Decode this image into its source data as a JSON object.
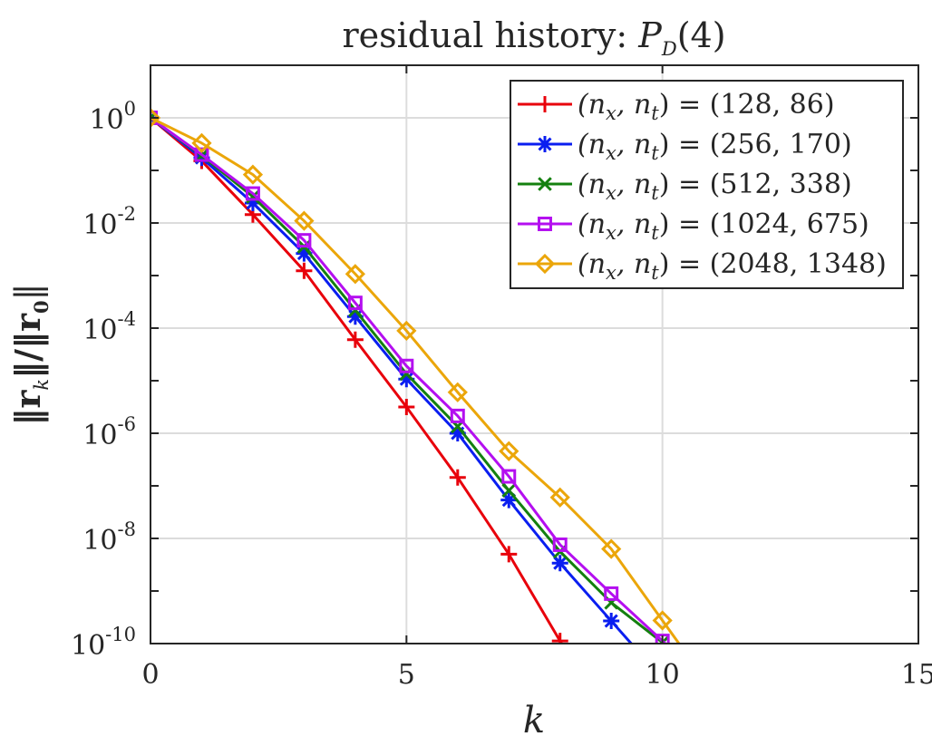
{
  "chart_data": {
    "type": "line",
    "title": "residual history: P̂_D(4)",
    "title_prefix": "residual history: ",
    "title_symbol": "P",
    "title_hat": "ˆ",
    "title_sub": "D",
    "title_arg": "(4)",
    "xlabel": "k",
    "ylabel": "||r_k|| / ||r_0||",
    "ylabel_parts": {
      "left": "‖r",
      "sub": "k",
      "mid": "‖/‖r",
      "sub2": "0",
      "right": "‖"
    },
    "xlim": [
      0,
      15
    ],
    "ylim_exp": [
      -10,
      1
    ],
    "yscale": "log",
    "grid": true,
    "legend_position": "top-right",
    "x_ticks": [
      0,
      5,
      10,
      15
    ],
    "y_tick_exponents": [
      0,
      -2,
      -4,
      -6,
      -8,
      -10
    ],
    "y_tick_base": "10",
    "series": [
      {
        "name": "(n_x, n_t) = (128, 86)",
        "label_pre": "(n",
        "label_sub1": "x",
        "label_mid": ", n",
        "label_sub2": "t",
        "label_post": ") = (128, 86)",
        "color": "#e8000b",
        "marker": "plus",
        "x": [
          0,
          1,
          2,
          3,
          4,
          5,
          6,
          7,
          8
        ],
        "log10_y": [
          0,
          -0.82,
          -1.84,
          -2.91,
          -4.22,
          -5.5,
          -6.84,
          -8.3,
          -9.95
        ]
      },
      {
        "name": "(n_x, n_t) = (256, 170)",
        "label_pre": "(n",
        "label_sub1": "x",
        "label_mid": ", n",
        "label_sub2": "t",
        "label_post": ") = (256, 170)",
        "color": "#0a1ef0",
        "marker": "asterisk",
        "x": [
          0,
          1,
          2,
          3,
          4,
          5,
          6,
          7,
          8,
          9
        ],
        "log10_y": [
          0,
          -0.76,
          -1.62,
          -2.58,
          -3.78,
          -4.97,
          -6.0,
          -7.27,
          -8.47,
          -9.57
        ]
      },
      {
        "name": "(n_x, n_t) = (512, 338)",
        "label_pre": "(n",
        "label_sub1": "x",
        "label_mid": ", n",
        "label_sub2": "t",
        "label_post": ") = (512, 338)",
        "color": "#14800f",
        "marker": "x",
        "x": [
          0,
          1,
          2,
          3,
          4,
          5,
          6,
          7,
          8,
          9,
          10
        ],
        "log10_y": [
          0,
          -0.72,
          -1.5,
          -2.45,
          -3.66,
          -4.87,
          -5.87,
          -7.09,
          -8.25,
          -9.22,
          -9.98
        ]
      },
      {
        "name": "(n_x, n_t) = (1024, 675)",
        "label_pre": "(n",
        "label_sub1": "x",
        "label_mid": ", n",
        "label_sub2": "t",
        "label_post": ") = (1024, 675)",
        "color": "#b40ff0",
        "marker": "square",
        "x": [
          0,
          1,
          2,
          3,
          4,
          5,
          6,
          7,
          8,
          9,
          10
        ],
        "log10_y": [
          0,
          -0.7,
          -1.44,
          -2.33,
          -3.52,
          -4.72,
          -5.67,
          -6.82,
          -8.12,
          -9.05,
          -9.95
        ]
      },
      {
        "name": "(n_x, n_t) = (2048, 1348)",
        "label_pre": "(n",
        "label_sub1": "x",
        "label_mid": ", n",
        "label_sub2": "t",
        "label_post": ") = (2048, 1348)",
        "color": "#eba60a",
        "marker": "diamond",
        "x": [
          0,
          1,
          2,
          3,
          4,
          5,
          6,
          7,
          8,
          9,
          10
        ],
        "log10_y": [
          0,
          -0.48,
          -1.08,
          -1.96,
          -2.97,
          -4.05,
          -5.22,
          -6.34,
          -7.22,
          -8.2,
          -9.56
        ]
      }
    ]
  }
}
